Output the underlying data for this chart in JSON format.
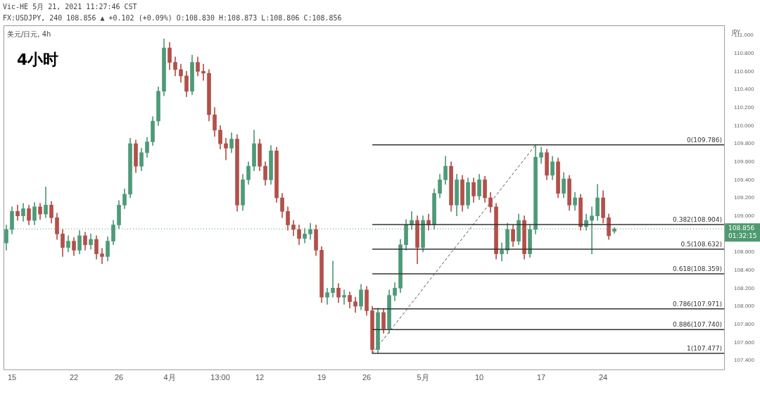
{
  "chart_data": {
    "type": "candlestick",
    "title": "4小时",
    "subtitle": "美元/日元, 4h",
    "ylabel": "JPY",
    "annotations": [
      "Vic-HE 5月 21, 2021 11:27:46 CST",
      "FX:USDJPY, 240 108.856 ▲ +0.102 (+0.09%) O:108.830 H:108.873 L:108.806 C:108.856"
    ],
    "categories": [
      null,
      "15",
      null,
      null,
      null,
      null,
      null,
      null,
      null,
      null,
      null,
      null,
      "22",
      null,
      null,
      null,
      null,
      null,
      null,
      null,
      "26",
      null,
      null,
      null,
      null,
      null,
      null,
      null,
      null,
      "4月",
      null,
      null,
      null,
      null,
      null,
      null,
      null,
      null,
      "13:00",
      null,
      null,
      null,
      null,
      null,
      null,
      "12",
      null,
      null,
      null,
      null,
      null,
      null,
      null,
      null,
      null,
      null,
      "19",
      null,
      null,
      null,
      null,
      null,
      null,
      null,
      "26",
      null,
      null,
      null,
      null,
      null,
      null,
      null,
      null,
      null,
      "5月",
      null,
      null,
      null,
      null,
      null,
      null,
      null,
      null,
      null,
      "10",
      null,
      null,
      null,
      null,
      null,
      null,
      null,
      null,
      null,
      null,
      "17",
      null,
      null,
      null,
      null,
      null,
      null,
      null,
      null,
      null,
      null,
      "24",
      null,
      null,
      null,
      null,
      null,
      null,
      null,
      null,
      null,
      null,
      null,
      null,
      null,
      null,
      null,
      null,
      null,
      null,
      null,
      null,
      null
    ],
    "ohlc": [
      [
        108.7,
        108.9,
        108.62,
        108.85
      ],
      [
        108.85,
        109.1,
        108.8,
        109.05
      ],
      [
        109.05,
        109.12,
        108.95,
        109.0
      ],
      [
        109.0,
        109.14,
        108.94,
        109.08
      ],
      [
        109.08,
        109.12,
        108.9,
        108.95
      ],
      [
        108.95,
        109.15,
        108.9,
        109.1
      ],
      [
        109.1,
        109.14,
        108.96,
        109.02
      ],
      [
        109.02,
        109.32,
        108.98,
        109.12
      ],
      [
        109.12,
        109.16,
        108.92,
        108.98
      ],
      [
        108.98,
        109.03,
        108.74,
        108.8
      ],
      [
        108.8,
        108.85,
        108.55,
        108.65
      ],
      [
        108.65,
        108.78,
        108.6,
        108.72
      ],
      [
        108.72,
        108.76,
        108.56,
        108.62
      ],
      [
        108.62,
        108.84,
        108.58,
        108.78
      ],
      [
        108.78,
        108.82,
        108.62,
        108.68
      ],
      [
        108.68,
        108.8,
        108.63,
        108.74
      ],
      [
        108.74,
        108.78,
        108.52,
        108.58
      ],
      [
        108.58,
        108.64,
        108.47,
        108.55
      ],
      [
        108.55,
        108.77,
        108.5,
        108.72
      ],
      [
        108.72,
        108.95,
        108.68,
        108.9
      ],
      [
        108.9,
        109.17,
        108.86,
        109.12
      ],
      [
        109.12,
        109.3,
        109.08,
        109.24
      ],
      [
        109.24,
        109.86,
        109.2,
        109.8
      ],
      [
        109.8,
        109.84,
        109.48,
        109.55
      ],
      [
        109.55,
        109.75,
        109.5,
        109.7
      ],
      [
        109.7,
        109.87,
        109.65,
        109.82
      ],
      [
        109.82,
        110.1,
        109.78,
        110.05
      ],
      [
        110.05,
        110.43,
        110.0,
        110.38
      ],
      [
        110.38,
        110.96,
        110.33,
        110.86
      ],
      [
        110.86,
        110.92,
        110.62,
        110.7
      ],
      [
        110.7,
        110.76,
        110.55,
        110.62
      ],
      [
        110.62,
        110.68,
        110.48,
        110.55
      ],
      [
        110.55,
        110.6,
        110.32,
        110.38
      ],
      [
        110.38,
        110.78,
        110.34,
        110.7
      ],
      [
        110.7,
        110.76,
        110.55,
        110.6
      ],
      [
        110.6,
        110.68,
        110.5,
        110.58
      ],
      [
        110.58,
        110.62,
        110.05,
        110.12
      ],
      [
        110.12,
        110.2,
        109.88,
        109.95
      ],
      [
        109.95,
        110.0,
        109.74,
        109.8
      ],
      [
        109.8,
        109.86,
        109.62,
        109.75
      ],
      [
        109.75,
        109.92,
        109.7,
        109.85
      ],
      [
        109.85,
        109.9,
        109.05,
        109.12
      ],
      [
        109.12,
        109.46,
        109.06,
        109.4
      ],
      [
        109.4,
        109.6,
        109.35,
        109.55
      ],
      [
        109.55,
        109.95,
        109.5,
        109.8
      ],
      [
        109.8,
        109.85,
        109.5,
        109.55
      ],
      [
        109.55,
        109.6,
        109.34,
        109.4
      ],
      [
        109.4,
        109.78,
        109.35,
        109.72
      ],
      [
        109.72,
        109.76,
        109.15,
        109.2
      ],
      [
        109.2,
        109.25,
        108.98,
        109.05
      ],
      [
        109.05,
        109.1,
        108.84,
        108.9
      ],
      [
        108.9,
        108.95,
        108.78,
        108.85
      ],
      [
        108.85,
        108.9,
        108.68,
        108.75
      ],
      [
        108.75,
        108.86,
        108.7,
        108.8
      ],
      [
        108.8,
        108.92,
        108.74,
        108.85
      ],
      [
        108.85,
        108.9,
        108.56,
        108.62
      ],
      [
        108.62,
        108.66,
        108.04,
        108.1
      ],
      [
        108.1,
        108.2,
        108.02,
        108.15
      ],
      [
        108.15,
        108.5,
        108.1,
        108.2
      ],
      [
        108.2,
        108.25,
        108.04,
        108.1
      ],
      [
        108.1,
        108.18,
        108.02,
        108.12
      ],
      [
        108.12,
        108.16,
        107.98,
        108.05
      ],
      [
        108.05,
        108.1,
        107.93,
        108.0
      ],
      [
        108.0,
        108.24,
        107.96,
        108.18
      ],
      [
        108.18,
        108.22,
        107.9,
        107.95
      ],
      [
        107.95,
        108.0,
        107.477,
        107.52
      ],
      [
        107.52,
        107.98,
        107.48,
        107.93
      ],
      [
        107.93,
        107.97,
        107.7,
        107.75
      ],
      [
        107.75,
        108.18,
        107.7,
        108.12
      ],
      [
        108.12,
        108.26,
        108.06,
        108.2
      ],
      [
        108.2,
        108.74,
        108.15,
        108.68
      ],
      [
        108.68,
        108.96,
        108.62,
        108.9
      ],
      [
        108.9,
        109.05,
        108.85,
        108.95
      ],
      [
        108.95,
        109.0,
        108.47,
        108.65
      ],
      [
        108.65,
        109.0,
        108.6,
        108.95
      ],
      [
        108.95,
        109.02,
        108.84,
        108.9
      ],
      [
        108.9,
        109.3,
        108.85,
        109.25
      ],
      [
        109.25,
        109.46,
        109.2,
        109.4
      ],
      [
        109.4,
        109.66,
        109.35,
        109.55
      ],
      [
        109.55,
        109.6,
        109.05,
        109.12
      ],
      [
        109.12,
        109.46,
        109.0,
        109.4
      ],
      [
        109.4,
        109.45,
        109.05,
        109.12
      ],
      [
        109.12,
        109.42,
        109.08,
        109.37
      ],
      [
        109.37,
        109.42,
        109.15,
        109.22
      ],
      [
        109.22,
        109.46,
        109.18,
        109.4
      ],
      [
        109.4,
        109.44,
        109.15,
        109.2
      ],
      [
        109.2,
        109.26,
        109.04,
        109.1
      ],
      [
        109.1,
        109.14,
        108.52,
        108.58
      ],
      [
        108.58,
        108.7,
        108.5,
        108.62
      ],
      [
        108.62,
        108.92,
        108.58,
        108.85
      ],
      [
        108.85,
        108.9,
        108.66,
        108.72
      ],
      [
        108.72,
        109.02,
        108.68,
        108.95
      ],
      [
        108.95,
        109.0,
        108.52,
        108.58
      ],
      [
        108.58,
        108.9,
        108.54,
        108.85
      ],
      [
        108.85,
        109.786,
        108.8,
        109.65
      ],
      [
        109.65,
        109.76,
        109.58,
        109.7
      ],
      [
        109.7,
        109.74,
        109.4,
        109.45
      ],
      [
        109.45,
        109.66,
        109.4,
        109.6
      ],
      [
        109.6,
        109.64,
        109.2,
        109.25
      ],
      [
        109.25,
        109.48,
        109.2,
        109.41
      ],
      [
        109.41,
        109.45,
        109.06,
        109.12
      ],
      [
        109.12,
        109.26,
        109.06,
        109.2
      ],
      [
        109.2,
        109.24,
        108.84,
        108.88
      ],
      [
        108.88,
        109.02,
        108.84,
        108.95
      ],
      [
        108.95,
        109.1,
        108.58,
        109.0
      ],
      [
        109.0,
        109.35,
        108.95,
        109.2
      ],
      [
        109.2,
        109.28,
        108.92,
        108.98
      ],
      [
        108.98,
        109.02,
        108.74,
        108.78
      ],
      [
        108.83,
        108.873,
        108.806,
        108.856
      ],
      null,
      null,
      null,
      null,
      null,
      null,
      null,
      null,
      null,
      null,
      null,
      null,
      null,
      null,
      null,
      null,
      null,
      null,
      null
    ],
    "colors": [
      "#4d9a78",
      "#4d9a78",
      "#b2504a",
      "#4d9a78",
      "#b2504a",
      "#4d9a78",
      "#b2504a",
      "#4d9a78",
      "#b2504a",
      "#b2504a",
      "#b2504a",
      "#4d9a78",
      "#b2504a",
      "#4d9a78",
      "#b2504a",
      "#4d9a78",
      "#b2504a",
      "#b2504a",
      "#4d9a78",
      "#4d9a78",
      "#4d9a78",
      "#4d9a78",
      "#4d9a78",
      "#b2504a",
      "#4d9a78",
      "#4d9a78",
      "#4d9a78",
      "#4d9a78",
      "#4d9a78",
      "#b2504a",
      "#b2504a",
      "#b2504a",
      "#b2504a",
      "#4d9a78",
      "#b2504a",
      "#b2504a",
      "#b2504a",
      "#b2504a",
      "#b2504a",
      "#b2504a",
      "#4d9a78",
      "#b2504a",
      "#4d9a78",
      "#4d9a78",
      "#4d9a78",
      "#b2504a",
      "#b2504a",
      "#4d9a78",
      "#b2504a",
      "#b2504a",
      "#b2504a",
      "#b2504a",
      "#b2504a",
      "#4d9a78",
      "#4d9a78",
      "#b2504a",
      "#b2504a",
      "#4d9a78",
      "#4d9a78",
      "#b2504a",
      "#4d9a78",
      "#b2504a",
      "#b2504a",
      "#4d9a78",
      "#b2504a",
      "#b2504a",
      "#4d9a78",
      "#b2504a",
      "#4d9a78",
      "#4d9a78",
      "#4d9a78",
      "#4d9a78",
      "#4d9a78",
      "#b2504a",
      "#4d9a78",
      "#b2504a",
      "#4d9a78",
      "#4d9a78",
      "#4d9a78",
      "#b2504a",
      "#4d9a78",
      "#b2504a",
      "#4d9a78",
      "#b2504a",
      "#4d9a78",
      "#b2504a",
      "#b2504a",
      "#b2504a",
      "#4d9a78",
      "#4d9a78",
      "#b2504a",
      "#4d9a78",
      "#b2504a",
      "#4d9a78",
      "#4d9a78",
      "#4d9a78",
      "#b2504a",
      "#4d9a78",
      "#b2504a",
      "#4d9a78",
      "#b2504a",
      "#4d9a78",
      "#b2504a",
      "#4d9a78",
      "#4d9a78",
      "#4d9a78",
      "#b2504a",
      "#b2504a",
      "#4d9a78",
      null,
      null,
      null,
      null,
      null,
      null,
      null,
      null,
      null,
      null,
      null,
      null,
      null,
      null,
      null,
      null,
      null,
      null,
      null
    ],
    "series": [
      {
        "type": "line",
        "color": "#555555",
        "line_style": "dashed",
        "values": [
          null,
          null,
          null,
          null,
          null,
          null,
          null,
          null,
          null,
          null,
          null,
          null,
          null,
          null,
          null,
          null,
          null,
          null,
          null,
          null,
          null,
          null,
          null,
          null,
          null,
          null,
          null,
          null,
          null,
          null,
          null,
          null,
          null,
          null,
          null,
          null,
          null,
          null,
          null,
          null,
          null,
          null,
          null,
          null,
          null,
          null,
          null,
          null,
          null,
          null,
          null,
          null,
          null,
          null,
          null,
          null,
          null,
          null,
          null,
          null,
          null,
          null,
          null,
          null,
          null,
          107.477,
          null,
          null,
          null,
          null,
          null,
          null,
          null,
          null,
          null,
          null,
          null,
          null,
          null,
          null,
          null,
          null,
          null,
          null,
          null,
          null,
          null,
          null,
          null,
          null,
          null,
          null,
          null,
          null,
          109.786,
          null,
          null,
          null,
          null,
          null,
          null,
          null,
          null,
          null,
          null,
          null,
          null,
          null,
          null,
          null,
          null,
          null,
          null,
          null,
          null,
          null,
          null,
          null,
          null,
          null,
          null,
          null,
          null,
          null,
          null,
          null,
          null,
          null
        ]
      }
    ],
    "ylim": [
      107.3,
      111.11
    ],
    "yticks": [
      {
        "value": 107.4,
        "label": "107.400"
      },
      {
        "value": 107.6,
        "label": "107.600"
      },
      {
        "value": 107.8,
        "label": "107.800"
      },
      {
        "value": 108,
        "label": "108.000"
      },
      {
        "value": 108.2,
        "label": "108.200"
      },
      {
        "value": 108.4,
        "label": "108.400"
      },
      {
        "value": 108.6,
        "label": "108.600"
      },
      {
        "value": 109,
        "label": "109.000"
      },
      {
        "value": 109.2,
        "label": "109.200"
      },
      {
        "value": 109.4,
        "label": "109.400"
      },
      {
        "value": 109.6,
        "label": "109.600"
      },
      {
        "value": 109.8,
        "label": "109.800"
      },
      {
        "value": 110,
        "label": "110.000"
      },
      {
        "value": 110.2,
        "label": "110.200"
      },
      {
        "value": 110.4,
        "label": "110.400"
      },
      {
        "value": 110.6,
        "label": "110.600"
      },
      {
        "value": 110.8,
        "label": "110.800"
      },
      {
        "value": 111,
        "label": "111.000"
      }
    ],
    "ref_lines": [
      {
        "axis": "y",
        "value": 109.786,
        "label": "0(109.786)",
        "color": "#333333",
        "line_style": "solid"
      },
      {
        "axis": "y",
        "value": 108.904,
        "label": "0.382(108.904)",
        "color": "#333333",
        "line_style": "solid"
      },
      {
        "axis": "y",
        "value": 108.632,
        "label": "0.5(108.632)",
        "color": "#333333",
        "line_style": "solid"
      },
      {
        "axis": "y",
        "value": 108.359,
        "label": "0.618(108.359)",
        "color": "#333333",
        "line_style": "solid"
      },
      {
        "axis": "y",
        "value": 107.971,
        "label": "0.786(107.971)",
        "color": "#333333",
        "line_style": "solid"
      },
      {
        "axis": "y",
        "value": 107.74,
        "label": "0.886(107.740)",
        "color": "#333333",
        "line_style": "solid"
      },
      {
        "axis": "y",
        "value": 107.477,
        "label": "1(107.477)",
        "color": "#333333",
        "line_style": "solid"
      },
      {
        "axis": "y",
        "value": 108.856,
        "label": "108.856\n01:32:15",
        "color": "#4e9a70",
        "line_style": "dotted"
      }
    ]
  }
}
